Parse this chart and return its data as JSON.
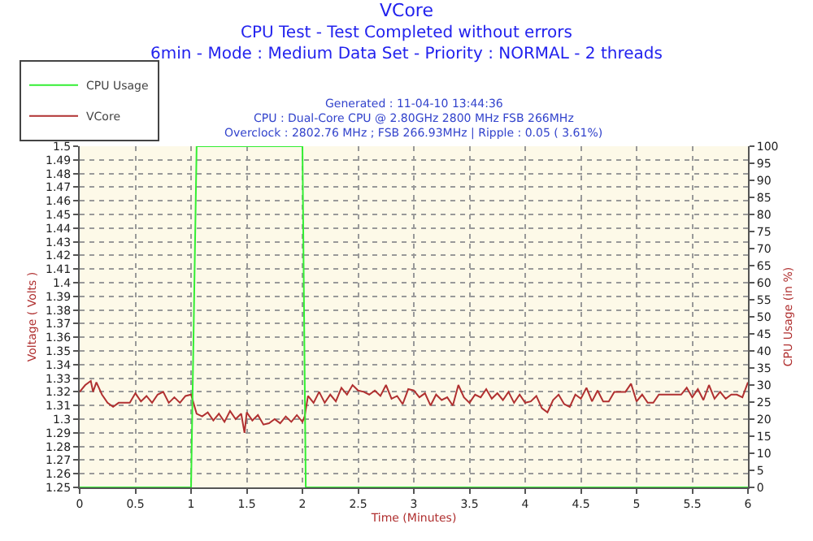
{
  "chart_data": {
    "type": "line",
    "title": "VCore",
    "subtitle": "CPU Test - Test Completed without errors\n6min - Mode : Medium Data Set - Priority : NORMAL - 2 threads",
    "annotations": [
      "Generated : 11-04-10 13:44:36",
      "CPU : Dual-Core CPU @ 2.80GHz 2800 MHz FSB 266MHz",
      "Overclock : 2802.76 MHz ; FSB 266.93MHz | Ripple : 0.05 ( 3.61%)"
    ],
    "xlabel": "Time (Minutes)",
    "ylabel": "Voltage ( Volts )",
    "y2label": "CPU Usage (in %)",
    "x": [
      0,
      0.05,
      0.1,
      0.12,
      0.15,
      0.2,
      0.25,
      0.3,
      0.35,
      0.45,
      0.5,
      0.55,
      0.6,
      0.65,
      0.7,
      0.75,
      0.8,
      0.85,
      0.9,
      0.95,
      1.0,
      1.05,
      1.1,
      1.15,
      1.2,
      1.25,
      1.3,
      1.35,
      1.4,
      1.45,
      1.48,
      1.5,
      1.55,
      1.6,
      1.65,
      1.7,
      1.75,
      1.8,
      1.85,
      1.9,
      1.95,
      2.0,
      2.02,
      2.05,
      2.1,
      2.15,
      2.2,
      2.25,
      2.3,
      2.35,
      2.4,
      2.45,
      2.5,
      2.55,
      2.6,
      2.65,
      2.7,
      2.75,
      2.8,
      2.85,
      2.9,
      2.95,
      3.0,
      3.05,
      3.1,
      3.15,
      3.2,
      3.25,
      3.3,
      3.35,
      3.4,
      3.45,
      3.5,
      3.55,
      3.6,
      3.65,
      3.7,
      3.75,
      3.8,
      3.85,
      3.9,
      3.95,
      4.0,
      4.05,
      4.1,
      4.15,
      4.2,
      4.25,
      4.3,
      4.35,
      4.4,
      4.45,
      4.5,
      4.55,
      4.6,
      4.65,
      4.7,
      4.75,
      4.8,
      4.85,
      4.9,
      4.95,
      5.0,
      5.05,
      5.1,
      5.15,
      5.2,
      5.25,
      5.3,
      5.35,
      5.4,
      5.45,
      5.5,
      5.55,
      5.6,
      5.65,
      5.7,
      5.75,
      5.8,
      5.85,
      5.9,
      5.95,
      6.0
    ],
    "series": [
      {
        "name": "CPU Usage",
        "color": "#33ee33",
        "axis": "y2",
        "x": [
          0,
          1.0,
          1.05,
          2.0,
          2.03,
          6.0
        ],
        "values": [
          0,
          0,
          100,
          100,
          0,
          0
        ]
      },
      {
        "name": "VCore",
        "color": "#b03030",
        "values": [
          1.32,
          1.325,
          1.328,
          1.32,
          1.327,
          1.318,
          1.312,
          1.309,
          1.312,
          1.312,
          1.319,
          1.313,
          1.317,
          1.312,
          1.318,
          1.32,
          1.312,
          1.316,
          1.312,
          1.317,
          1.318,
          1.304,
          1.302,
          1.305,
          1.299,
          1.304,
          1.298,
          1.306,
          1.3,
          1.304,
          1.29,
          1.305,
          1.299,
          1.303,
          1.296,
          1.297,
          1.3,
          1.297,
          1.302,
          1.298,
          1.303,
          1.298,
          1.302,
          1.317,
          1.312,
          1.32,
          1.312,
          1.318,
          1.313,
          1.323,
          1.318,
          1.325,
          1.321,
          1.32,
          1.318,
          1.321,
          1.317,
          1.325,
          1.315,
          1.317,
          1.311,
          1.322,
          1.321,
          1.316,
          1.319,
          1.31,
          1.318,
          1.314,
          1.316,
          1.31,
          1.325,
          1.316,
          1.312,
          1.318,
          1.316,
          1.322,
          1.315,
          1.319,
          1.314,
          1.32,
          1.312,
          1.318,
          1.312,
          1.313,
          1.317,
          1.308,
          1.305,
          1.314,
          1.318,
          1.311,
          1.309,
          1.318,
          1.315,
          1.323,
          1.313,
          1.321,
          1.313,
          1.313,
          1.32,
          1.32,
          1.32,
          1.326,
          1.313,
          1.318,
          1.312,
          1.312,
          1.318,
          1.318,
          1.318,
          1.318,
          1.318,
          1.323,
          1.316,
          1.322,
          1.314,
          1.325,
          1.315,
          1.32,
          1.315,
          1.318,
          1.318,
          1.316,
          1.327
        ]
      }
    ],
    "xlim": [
      0,
      6
    ],
    "xticks": [
      0,
      0.5,
      1,
      1.5,
      2,
      2.5,
      3,
      3.5,
      4,
      4.5,
      5,
      5.5,
      6
    ],
    "ylim": [
      1.25,
      1.5
    ],
    "yticks": [
      1.25,
      1.26,
      1.27,
      1.28,
      1.29,
      1.3,
      1.31,
      1.32,
      1.33,
      1.34,
      1.35,
      1.36,
      1.37,
      1.38,
      1.39,
      1.4,
      1.41,
      1.42,
      1.43,
      1.44,
      1.45,
      1.46,
      1.47,
      1.48,
      1.49,
      1.5
    ],
    "y2lim": [
      0,
      100
    ],
    "y2ticks": [
      0,
      5,
      10,
      15,
      20,
      25,
      30,
      35,
      40,
      45,
      50,
      55,
      60,
      65,
      70,
      75,
      80,
      85,
      90,
      95,
      100
    ],
    "grid": true,
    "legend": "top left"
  }
}
